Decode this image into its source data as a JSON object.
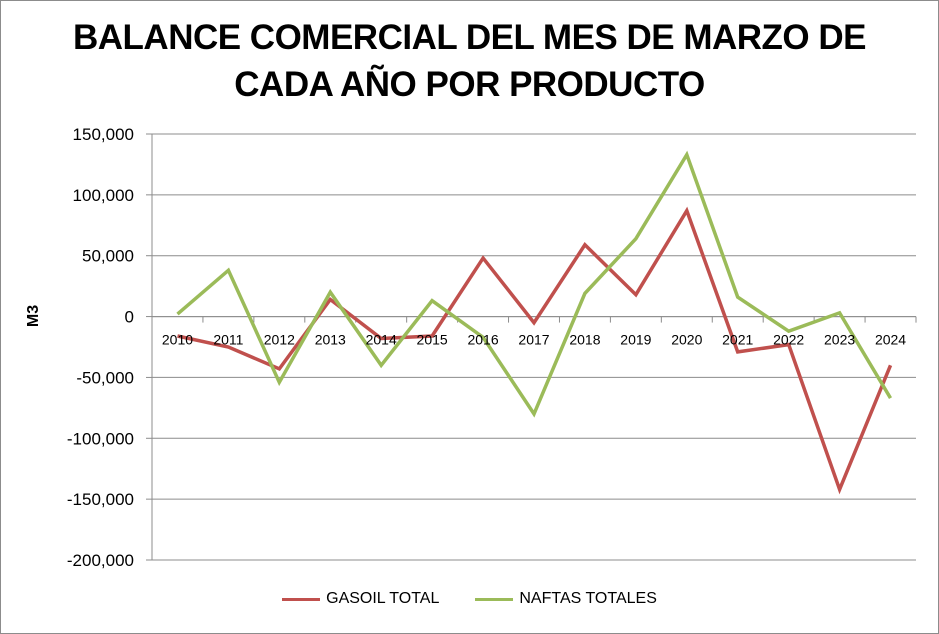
{
  "chart_data": {
    "type": "line",
    "title": "BALANCE COMERCIAL DEL MES DE MARZO DE CADA AÑO POR PRODUCTO",
    "title_lines": [
      "BALANCE COMERCIAL DEL MES DE MARZO DE",
      "CADA AÑO POR PRODUCTO"
    ],
    "xlabel": "",
    "ylabel": "M3",
    "ylim": [
      -200000,
      150000
    ],
    "yticks": [
      150000,
      100000,
      50000,
      0,
      -50000,
      -100000,
      -150000,
      -200000
    ],
    "ytick_labels": [
      "150,000",
      "100,000",
      "50,000",
      "0",
      "-50,000",
      "-100,000",
      "-150,000",
      "-200,000"
    ],
    "categories": [
      "2010",
      "2011",
      "2012",
      "2013",
      "2014",
      "2015",
      "2016",
      "2017",
      "2018",
      "2019",
      "2020",
      "2021",
      "2022",
      "2023",
      "2024"
    ],
    "grid": true,
    "legend_position": "bottom",
    "series": [
      {
        "name": "GASOIL TOTAL",
        "color": "#c0504d",
        "values": [
          -16000,
          -25000,
          -43000,
          14000,
          -18000,
          -16000,
          48000,
          -5000,
          59000,
          18000,
          87000,
          -29000,
          -23000,
          -142000,
          -40000
        ]
      },
      {
        "name": "NAFTAS TOTALES",
        "color": "#9bbb59",
        "values": [
          2000,
          38000,
          -54000,
          20000,
          -40000,
          13000,
          -17000,
          -80000,
          19000,
          64000,
          133000,
          16000,
          -12000,
          3000,
          -67000
        ]
      }
    ]
  }
}
